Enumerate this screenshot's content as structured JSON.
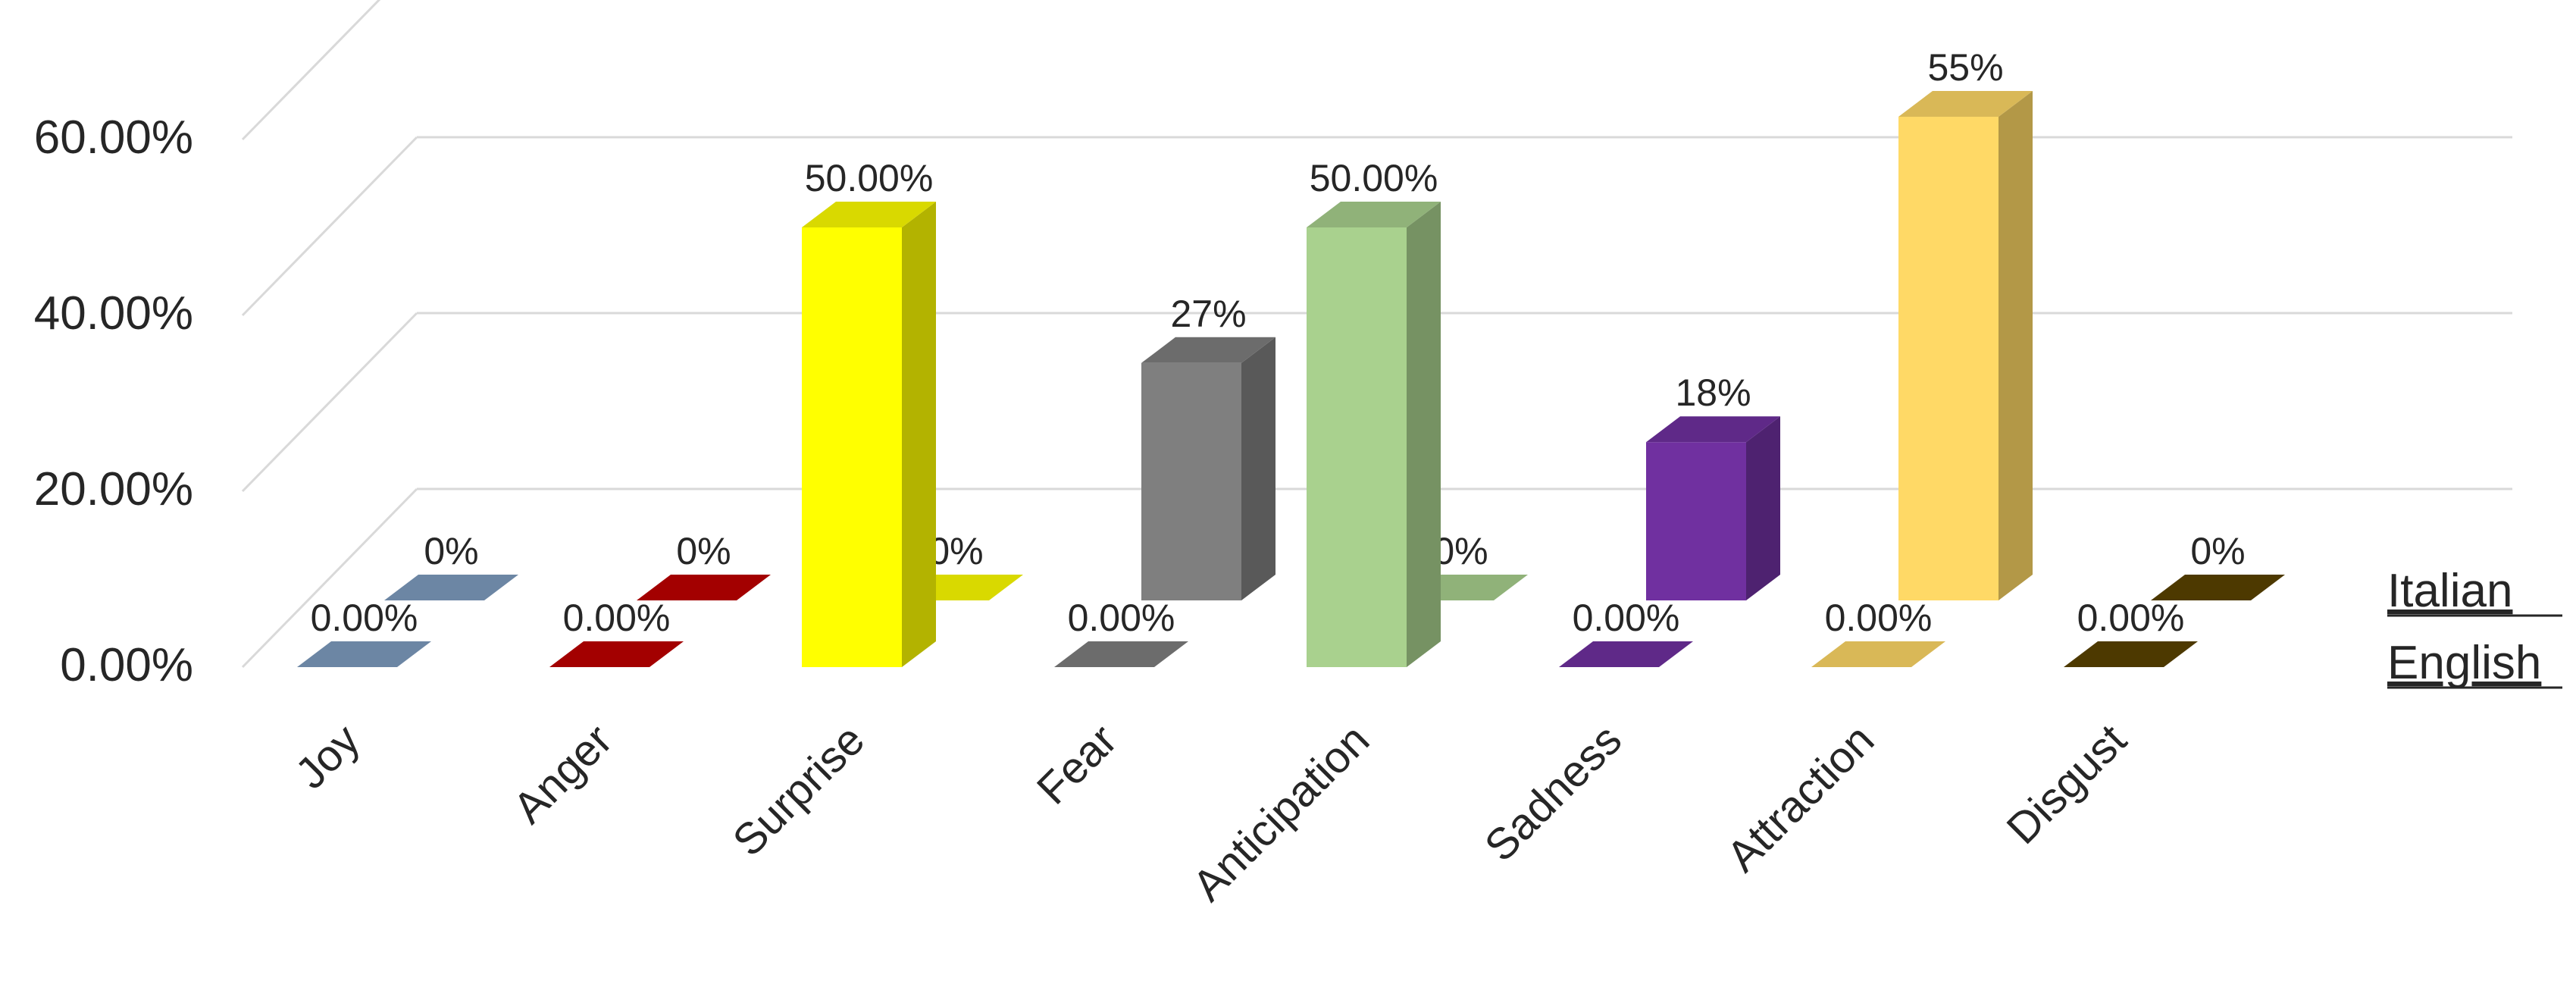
{
  "chart_data": {
    "type": "bar",
    "style": "3d-clustered-depth",
    "title": "",
    "xlabel": "",
    "ylabel": "",
    "ylim": [
      0,
      0.6
    ],
    "grid": true,
    "legend_placement": "right",
    "categories": [
      "Joy",
      "Anger",
      "Surprise",
      "Fear",
      "Anticipation",
      "Sadness",
      "Attraction",
      "Disgust"
    ],
    "y_ticks": [
      {
        "value": 0,
        "label": "0.00%"
      },
      {
        "value": 0.2,
        "label": "20.00%"
      },
      {
        "value": 0.4,
        "label": "40.00%"
      },
      {
        "value": 0.6,
        "label": "60.00%"
      }
    ],
    "series": [
      {
        "name": "English",
        "row": "front",
        "values": [
          0,
          0,
          0.5,
          0,
          0.5,
          0,
          0,
          0
        ],
        "labels": [
          "0.00%",
          "0.00%",
          "50.00%",
          "0.00%",
          "50.00%",
          "0.00%",
          "0.00%",
          "0.00%"
        ]
      },
      {
        "name": "Italian",
        "row": "back",
        "values": [
          0,
          0,
          0,
          0.27,
          0,
          0.18,
          0.55,
          0
        ],
        "labels": [
          "0%",
          "0%",
          "0%",
          "27%",
          "0%",
          "18%",
          "55%",
          "0%"
        ]
      }
    ],
    "category_colors": {
      "Joy": "#7f9ec1",
      "Anger": "#c00000",
      "Surprise": "#ffff00",
      "Fear": "#7f7f7f",
      "Anticipation": "#a9d18e",
      "Sadness": "#7030a0",
      "Attraction": "#ffd966",
      "Disgust": "#5b4300"
    },
    "gridline_color": "#d9d9d9"
  }
}
